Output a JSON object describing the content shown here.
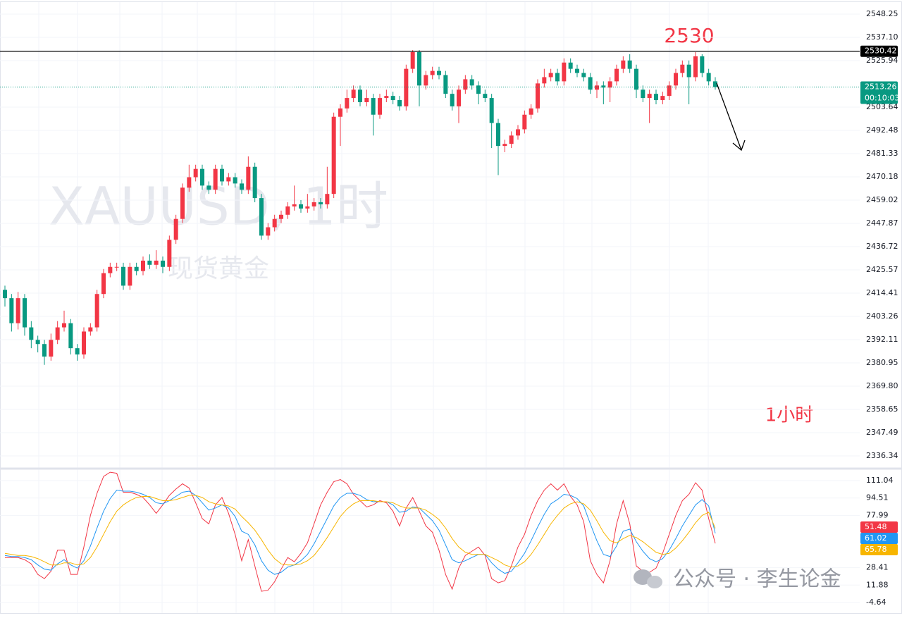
{
  "chart_data": [
    {
      "type": "candlestick",
      "title": "XAUUSD, 1时",
      "subtitle": "现货黄金",
      "annotations": [
        "2530",
        "1小时"
      ],
      "up_color": "#f23645",
      "down_color": "#089981",
      "open": [
        2416,
        2412,
        2400,
        2412,
        2398,
        2392,
        2390,
        2384,
        2392,
        2398,
        2400,
        2388,
        2385,
        2396,
        2398,
        2414,
        2424,
        2427,
        2427,
        2418,
        2427,
        2425,
        2430,
        2428,
        2430,
        2427,
        2440,
        2450,
        2465,
        2470,
        2474,
        2466,
        2464,
        2474,
        2468,
        2470,
        2467,
        2464,
        2475,
        2460,
        2442,
        2446,
        2450,
        2452,
        2456,
        2457,
        2455,
        2456,
        2458,
        2457,
        2462,
        2499,
        2503,
        2508,
        2512,
        2506,
        2508,
        2500,
        2508,
        2509,
        2507,
        2504,
        2522,
        2530,
        2514,
        2519,
        2521,
        2519,
        2510,
        2504,
        2512,
        2517,
        2514,
        2510,
        2508,
        2496,
        2485,
        2486,
        2490,
        2493,
        2500,
        2503,
        2515,
        2518,
        2520,
        2516,
        2525,
        2522,
        2520,
        2518,
        2512,
        2514,
        2513,
        2516,
        2522,
        2526,
        2522,
        2512,
        2508,
        2510,
        2507,
        2509,
        2514,
        2520,
        2524,
        2518,
        2528,
        2520,
        2516
      ],
      "high": [
        2418,
        2414,
        2415,
        2414,
        2401,
        2394,
        2392,
        2395,
        2401,
        2406,
        2402,
        2390,
        2398,
        2400,
        2416,
        2426,
        2429,
        2429,
        2429,
        2429,
        2429,
        2432,
        2433,
        2435,
        2432,
        2442,
        2452,
        2467,
        2476,
        2476,
        2476,
        2468,
        2476,
        2476,
        2472,
        2472,
        2469,
        2480,
        2477,
        2462,
        2448,
        2452,
        2454,
        2458,
        2466,
        2459,
        2462,
        2460,
        2460,
        2475,
        2501,
        2505,
        2512,
        2514,
        2514,
        2512,
        2510,
        2510,
        2512,
        2511,
        2509,
        2524,
        2531,
        2531,
        2521,
        2523,
        2523,
        2521,
        2512,
        2514,
        2519,
        2519,
        2516,
        2512,
        2510,
        2498,
        2488,
        2492,
        2495,
        2502,
        2505,
        2517,
        2522,
        2522,
        2522,
        2527,
        2527,
        2524,
        2522,
        2520,
        2516,
        2516,
        2518,
        2524,
        2528,
        2529,
        2524,
        2514,
        2512,
        2512,
        2511,
        2516,
        2522,
        2526,
        2526,
        2530,
        2529,
        2522,
        2518
      ],
      "low": [
        2408,
        2396,
        2397,
        2394,
        2388,
        2386,
        2380,
        2382,
        2390,
        2396,
        2385,
        2382,
        2383,
        2394,
        2396,
        2412,
        2422,
        2425,
        2416,
        2416,
        2423,
        2423,
        2426,
        2426,
        2424,
        2425,
        2438,
        2448,
        2463,
        2468,
        2464,
        2462,
        2462,
        2466,
        2466,
        2465,
        2462,
        2462,
        2458,
        2440,
        2440,
        2444,
        2448,
        2450,
        2454,
        2453,
        2453,
        2454,
        2455,
        2455,
        2460,
        2485,
        2501,
        2506,
        2504,
        2504,
        2490,
        2498,
        2506,
        2505,
        2502,
        2502,
        2520,
        2504,
        2512,
        2517,
        2517,
        2508,
        2502,
        2496,
        2510,
        2512,
        2505,
        2506,
        2484,
        2471,
        2482,
        2484,
        2488,
        2491,
        2498,
        2501,
        2513,
        2516,
        2514,
        2514,
        2520,
        2518,
        2516,
        2510,
        2508,
        2505,
        2506,
        2514,
        2520,
        2520,
        2508,
        2506,
        2496,
        2505,
        2505,
        2507,
        2512,
        2518,
        2505,
        2516,
        2518,
        2514,
        2512
      ],
      "close": [
        2412,
        2400,
        2412,
        2398,
        2392,
        2390,
        2384,
        2392,
        2398,
        2400,
        2388,
        2385,
        2396,
        2398,
        2414,
        2424,
        2427,
        2427,
        2418,
        2427,
        2425,
        2430,
        2428,
        2430,
        2427,
        2440,
        2450,
        2465,
        2470,
        2474,
        2466,
        2464,
        2474,
        2468,
        2470,
        2467,
        2464,
        2475,
        2460,
        2442,
        2446,
        2450,
        2452,
        2456,
        2457,
        2455,
        2456,
        2458,
        2457,
        2462,
        2499,
        2503,
        2508,
        2512,
        2506,
        2508,
        2500,
        2508,
        2509,
        2507,
        2504,
        2522,
        2530,
        2514,
        2519,
        2521,
        2519,
        2510,
        2504,
        2512,
        2517,
        2514,
        2510,
        2508,
        2496,
        2485,
        2486,
        2490,
        2493,
        2500,
        2503,
        2515,
        2518,
        2520,
        2516,
        2525,
        2522,
        2520,
        2518,
        2512,
        2514,
        2513,
        2516,
        2522,
        2526,
        2522,
        2512,
        2508,
        2510,
        2507,
        2509,
        2514,
        2520,
        2524,
        2518,
        2528,
        2520,
        2516,
        2513.26
      ],
      "price_lines": [
        {
          "value": 2530.42,
          "color": "#000000"
        }
      ],
      "countdown": "00:10:03",
      "ylim": [
        2330.93,
        2553.99
      ],
      "yticks": [
        2548.25,
        {
          "value": 2537.1,
          "label": "2537.10"
        },
        2525.94,
        2503.64,
        2492.48,
        2481.33,
        2470.18,
        2459.02,
        2447.87,
        2436.72,
        2425.57,
        2414.41,
        2403.26,
        2392.11,
        2380.95,
        {
          "value": 2369.8,
          "label": "2369.80"
        },
        2358.65,
        2347.49,
        2336.34
      ]
    },
    {
      "type": "line",
      "series": [
        {
          "color": "#f23645",
          "values": [
            38,
            38,
            38,
            36,
            32,
            22,
            18,
            25,
            45,
            45,
            22,
            22,
            48,
            78,
            99,
            115,
            119,
            118,
            100,
            100,
            98,
            95,
            88,
            80,
            88,
            97,
            103,
            108,
            104,
            90,
            75,
            70,
            88,
            95,
            80,
            60,
            35,
            55,
            30,
            6,
            7,
            15,
            27,
            38,
            34,
            42,
            52,
            70,
            88,
            100,
            110,
            112,
            108,
            98,
            92,
            86,
            88,
            92,
            90,
            82,
            68,
            85,
            95,
            82,
            68,
            62,
            45,
            22,
            8,
            28,
            40,
            44,
            48,
            40,
            18,
            14,
            16,
            30,
            48,
            60,
            78,
            92,
            102,
            108,
            102,
            108,
            96,
            88,
            72,
            35,
            22,
            14,
            35,
            70,
            92,
            70,
            30,
            25,
            24,
            28,
            42,
            60,
            78,
            92,
            98,
            109,
            102,
            75,
            51.48
          ]
        },
        {
          "color": "#2196f3",
          "values": [
            40,
            39,
            39,
            38,
            36,
            31,
            27,
            26,
            32,
            36,
            31,
            28,
            35,
            49,
            66,
            82,
            94,
            102,
            101,
            101,
            100,
            98,
            95,
            90,
            89,
            92,
            96,
            100,
            101,
            97,
            90,
            83,
            85,
            88,
            85,
            77,
            63,
            60,
            50,
            35,
            26,
            22,
            24,
            29,
            31,
            35,
            41,
            51,
            63,
            75,
            87,
            95,
            99,
            99,
            97,
            93,
            91,
            91,
            91,
            88,
            81,
            82,
            86,
            85,
            79,
            73,
            64,
            50,
            36,
            33,
            35,
            38,
            41,
            41,
            33,
            27,
            23,
            25,
            33,
            42,
            54,
            67,
            79,
            89,
            93,
            98,
            97,
            94,
            87,
            70,
            54,
            41,
            39,
            49,
            63,
            65,
            53,
            44,
            37,
            34,
            37,
            45,
            56,
            68,
            78,
            88,
            93,
            87,
            61.02
          ]
        },
        {
          "color": "#f7b500",
          "values": [
            42,
            41,
            40,
            40,
            39,
            37,
            34,
            31,
            31,
            33,
            33,
            31,
            32,
            38,
            48,
            60,
            72,
            82,
            88,
            92,
            95,
            96,
            96,
            94,
            92,
            92,
            93,
            95,
            97,
            97,
            95,
            91,
            89,
            88,
            87,
            84,
            77,
            71,
            64,
            55,
            45,
            37,
            32,
            31,
            31,
            32,
            35,
            40,
            48,
            57,
            67,
            77,
            84,
            89,
            92,
            92,
            92,
            91,
            91,
            90,
            87,
            85,
            85,
            85,
            83,
            79,
            74,
            66,
            56,
            48,
            43,
            41,
            41,
            41,
            38,
            35,
            31,
            29,
            30,
            34,
            41,
            50,
            60,
            70,
            78,
            85,
            89,
            91,
            89,
            83,
            73,
            62,
            54,
            52,
            56,
            59,
            57,
            53,
            48,
            43,
            41,
            42,
            47,
            54,
            62,
            71,
            78,
            81,
            65.78
          ]
        }
      ],
      "ylim": [
        -12,
        120.4
      ],
      "yticks": [
        111.04,
        94.51,
        77.99,
        28.41,
        11.88,
        -4.64
      ]
    }
  ],
  "watermark": "公众号 · 李生论金"
}
